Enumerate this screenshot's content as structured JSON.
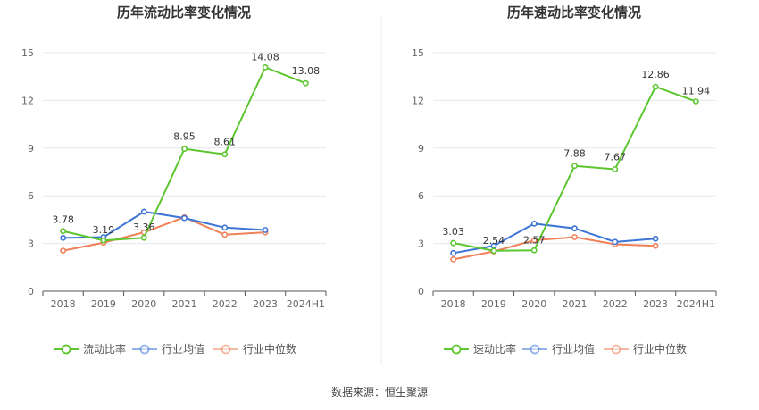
{
  "source_label": "数据来源：恒生聚源",
  "colors": {
    "company": "#5cc62f",
    "industry_avg": "#3d75d6",
    "industry_median": "#f08058",
    "grid": "#e3e8f0",
    "axis": "#555555",
    "divider": "#eeeeee"
  },
  "chart_data": [
    {
      "type": "line",
      "title": "历年流动比率变化情况",
      "categories": [
        "2018",
        "2019",
        "2020",
        "2021",
        "2022",
        "2023",
        "2024H1"
      ],
      "ylim": [
        0,
        15
      ],
      "yticks": [
        0,
        3,
        6,
        9,
        12,
        15
      ],
      "grid": true,
      "legend_position": "bottom-center",
      "series": [
        {
          "name": "流动比率",
          "color": "#5cc62f",
          "values": [
            3.78,
            3.19,
            3.36,
            8.95,
            8.61,
            14.08,
            13.08
          ],
          "labels": [
            "3.78",
            "3.19",
            "3.36",
            "8.95",
            "8.61",
            "14.08",
            "13.08"
          ]
        },
        {
          "name": "行业均值",
          "color": "#3d75d6",
          "values": [
            3.35,
            3.4,
            5.0,
            4.6,
            4.0,
            3.85,
            null
          ]
        },
        {
          "name": "行业中位数",
          "color": "#f08058",
          "values": [
            2.55,
            3.05,
            3.7,
            4.65,
            3.55,
            3.7,
            null
          ]
        }
      ]
    },
    {
      "type": "line",
      "title": "历年速动比率变化情况",
      "categories": [
        "2018",
        "2019",
        "2020",
        "2021",
        "2022",
        "2023",
        "2024H1"
      ],
      "ylim": [
        0,
        15
      ],
      "yticks": [
        0,
        3,
        6,
        9,
        12,
        15
      ],
      "grid": true,
      "legend_position": "bottom-center",
      "series": [
        {
          "name": "速动比率",
          "color": "#5cc62f",
          "values": [
            3.03,
            2.54,
            2.57,
            7.88,
            7.67,
            12.86,
            11.94
          ],
          "labels": [
            "3.03",
            "2.54",
            "2.57",
            "7.88",
            "7.67",
            "12.86",
            "11.94"
          ]
        },
        {
          "name": "行业均值",
          "color": "#3d75d6",
          "values": [
            2.4,
            2.85,
            4.25,
            3.95,
            3.1,
            3.3,
            null
          ]
        },
        {
          "name": "行业中位数",
          "color": "#f08058",
          "values": [
            2.0,
            2.5,
            3.2,
            3.4,
            2.95,
            2.85,
            null
          ]
        }
      ]
    }
  ]
}
